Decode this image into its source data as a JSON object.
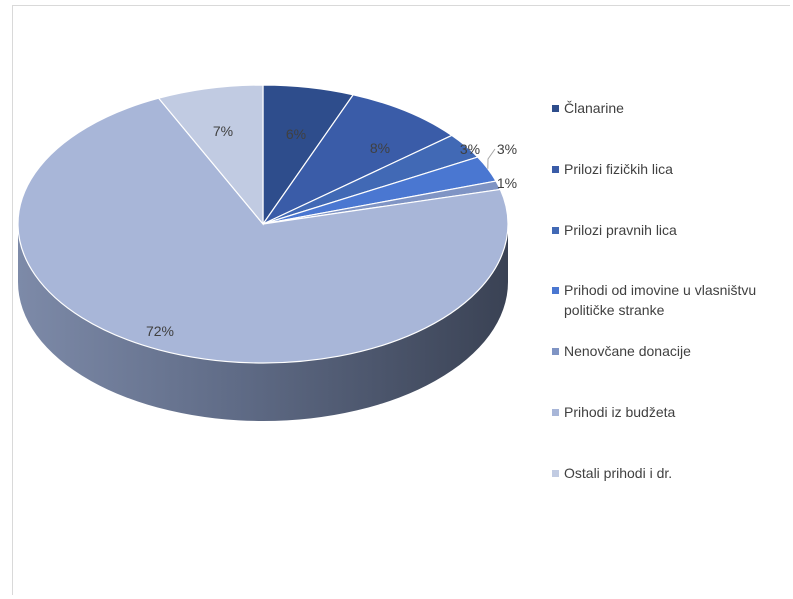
{
  "chart_data": {
    "type": "pie",
    "title": "",
    "categories": [
      "Članarine",
      "Prilozi fizičkih lica",
      "Prilozi pravnih lica",
      "Prihodi od imovine u vlasništvu političke stranke",
      "Nenovčane donacije",
      "Prihodi iz budžeta",
      "Ostali prihodi i dr."
    ],
    "values": [
      6,
      8,
      3,
      3,
      1,
      72,
      7
    ],
    "data_labels": [
      "6%",
      "8%",
      "3%",
      "3%",
      "1%",
      "72%",
      "7%"
    ],
    "colors": [
      "#2e4d8c",
      "#3a5ca8",
      "#4169b5",
      "#4a77d1",
      "#7f94c4",
      "#a8b6d8",
      "#c1cbe2"
    ],
    "legend_position": "right",
    "style": "3d"
  }
}
